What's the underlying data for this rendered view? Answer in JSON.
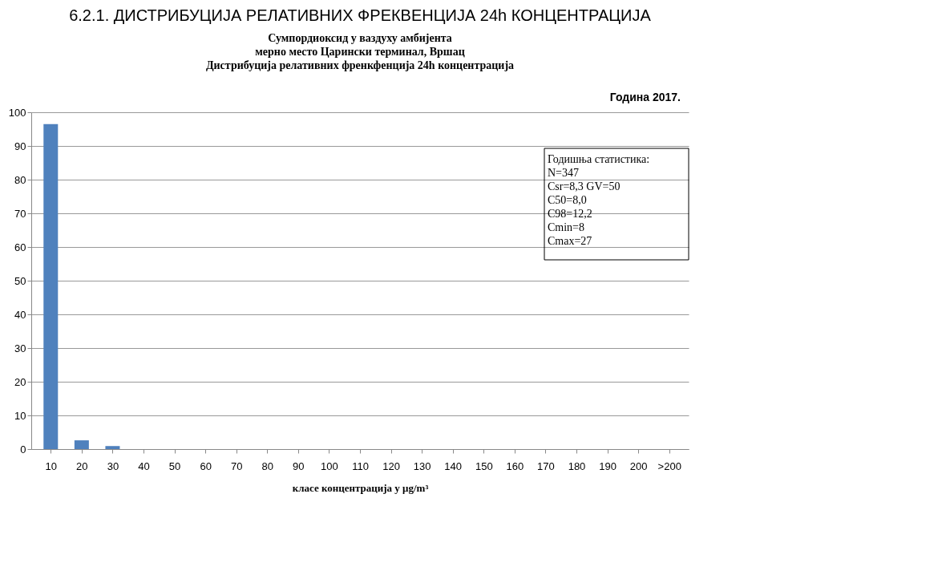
{
  "chart_data": {
    "type": "bar",
    "title": "Сумпордиоксид у ваздуху амбијента\nмерно место Царински терминал, Вршац\nДистрибуција релативних френкфенција  24h концентрација",
    "xlabel": "класе концентрација у  μg/m³",
    "categories": [
      "10",
      "20",
      "30",
      "40",
      "50",
      "60",
      "70",
      "80",
      "90",
      "100",
      "110",
      "120",
      "130",
      "140",
      "150",
      "160",
      "170",
      "180",
      "190",
      "200",
      ">200"
    ],
    "values": [
      96.5,
      2.6,
      0.9,
      0,
      0,
      0,
      0,
      0,
      0,
      0,
      0,
      0,
      0,
      0,
      0,
      0,
      0,
      0,
      0,
      0,
      0
    ],
    "color": "#4f81bd",
    "ylim": [
      0,
      100
    ],
    "yticks": [
      0,
      10,
      20,
      30,
      40,
      50,
      60,
      70,
      80,
      90,
      100
    ],
    "grid": "y",
    "annotations": [
      "6.2.1. ДИСТРИБУЦИЈА РЕЛАТИВНИХ ФРЕКВЕНЦИЈА 24h КОНЦЕНТРАЦИЈА",
      "Година  2017.",
      "Годишња статистика:",
      "N=347",
      "Csr=8,3       GV=50",
      "C50=8,0",
      "C98=12,2",
      "Cmin=8",
      "Cmax=27"
    ]
  }
}
